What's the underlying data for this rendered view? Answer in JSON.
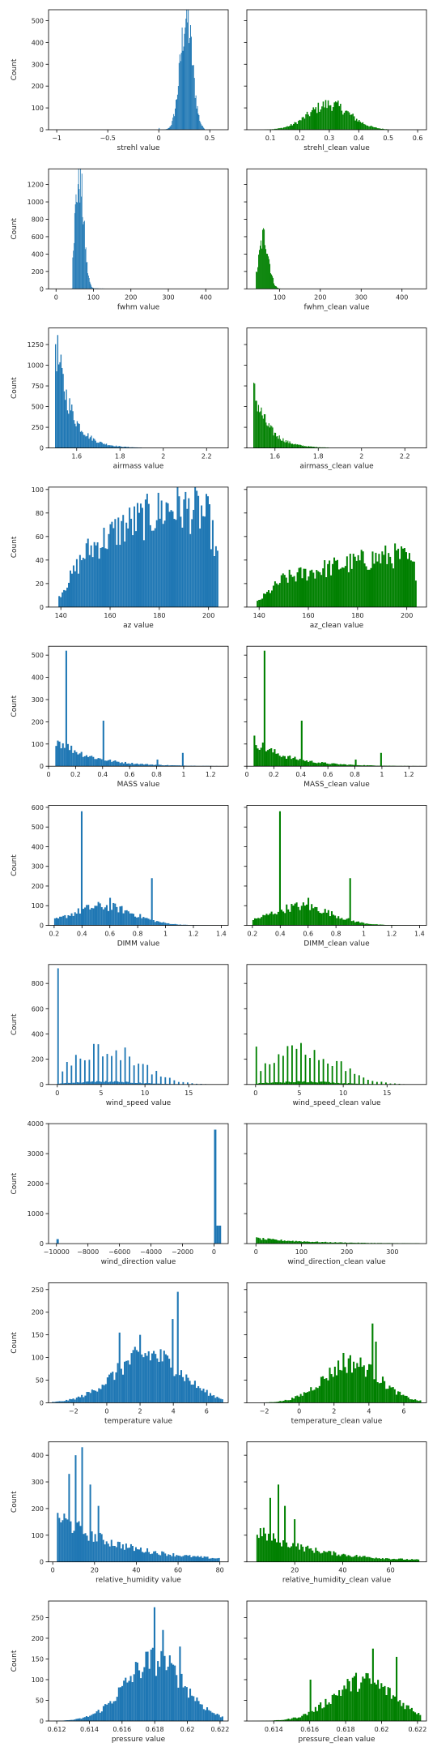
{
  "figure": {
    "bar_color_raw": "#1f77b4",
    "bar_color_clean": "#008000"
  },
  "chart_data": [
    {
      "type": "bar",
      "xlabel": "strehl value",
      "ylabel": "Count",
      "color": "#1f77b4",
      "xlim": [
        -1.08,
        0.68
      ],
      "ylim": [
        0,
        550
      ],
      "xticks": [
        -1.0,
        -0.5,
        0.0,
        0.5
      ],
      "yticks": [
        0,
        100,
        200,
        300,
        400,
        500
      ],
      "hist": {
        "center": 0.27,
        "spread": 0.06,
        "peak": 525,
        "min": 0.0,
        "max": 0.45,
        "bins": 60,
        "spikes": [
          [
            -1.0,
            8
          ]
        ]
      }
    },
    {
      "type": "bar",
      "xlabel": "strehl_clean value",
      "ylabel": "",
      "color": "#008000",
      "xlim": [
        0.02,
        0.63
      ],
      "ylim": [
        0,
        550
      ],
      "xticks": [
        0.1,
        0.2,
        0.3,
        0.4,
        0.5,
        0.6
      ],
      "yticks": [
        0,
        100,
        200,
        300,
        400,
        500
      ],
      "hist": {
        "center": 0.3,
        "spread": 0.07,
        "peak": 120,
        "min": 0.08,
        "max": 0.5,
        "bins": 100,
        "spikes": []
      }
    },
    {
      "type": "bar",
      "xlabel": "fwhm value",
      "ylabel": "Count",
      "color": "#1f77b4",
      "xlim": [
        -20,
        460
      ],
      "ylim": [
        0,
        1380
      ],
      "xticks": [
        0,
        100,
        200,
        300,
        400
      ],
      "yticks": [
        0,
        200,
        400,
        600,
        800,
        1000,
        1200
      ],
      "hist": {
        "center": 62,
        "spread": 12,
        "peak": 1310,
        "min": 42,
        "max": 200,
        "bins": 90,
        "tail": 30,
        "spikes": [
          [
            0,
            6
          ]
        ]
      }
    },
    {
      "type": "bar",
      "xlabel": "fwhm_clean value",
      "ylabel": "",
      "color": "#008000",
      "xlim": [
        20,
        460
      ],
      "ylim": [
        0,
        1380
      ],
      "xticks": [
        100,
        200,
        300,
        400
      ],
      "yticks": [
        0,
        200,
        400,
        600,
        800,
        1000,
        1200
      ],
      "hist": {
        "center": 62,
        "spread": 12,
        "peak": 620,
        "min": 42,
        "max": 220,
        "bins": 90,
        "tail": 30,
        "spikes": []
      }
    },
    {
      "type": "bar",
      "xlabel": "airmass value",
      "ylabel": "Count",
      "color": "#1f77b4",
      "xlim": [
        1.47,
        2.3
      ],
      "ylim": [
        0,
        1450
      ],
      "xticks": [
        1.6,
        1.8,
        2.0,
        2.2
      ],
      "yticks": [
        0,
        250,
        500,
        750,
        1000,
        1250
      ],
      "hist": {
        "decay_from": 1.5,
        "decay_scale": 0.07,
        "peak": 1380,
        "min": 1.5,
        "max": 1.9,
        "bins": 80,
        "spikes": []
      }
    },
    {
      "type": "bar",
      "xlabel": "airmass_clean value",
      "ylabel": "",
      "color": "#008000",
      "xlim": [
        1.47,
        2.3
      ],
      "ylim": [
        0,
        1450
      ],
      "xticks": [
        1.6,
        1.8,
        2.0,
        2.2
      ],
      "yticks": [
        0,
        250,
        500,
        750,
        1000,
        1250
      ],
      "hist": {
        "decay_from": 1.5,
        "decay_scale": 0.07,
        "peak": 740,
        "min": 1.5,
        "max": 1.85,
        "bins": 80,
        "spikes": []
      }
    },
    {
      "type": "bar",
      "xlabel": "az value",
      "ylabel": "Count",
      "color": "#1f77b4",
      "xlim": [
        135,
        208
      ],
      "ylim": [
        0,
        102
      ],
      "xticks": [
        140,
        160,
        180,
        200
      ],
      "yticks": [
        0,
        20,
        40,
        60,
        80,
        100
      ],
      "hist": {
        "ramp": [
          [
            139,
            8
          ],
          [
            150,
            48
          ],
          [
            165,
            70
          ],
          [
            185,
            88
          ],
          [
            195,
            85
          ],
          [
            200,
            78
          ],
          [
            204,
            40
          ]
        ],
        "min": 139,
        "max": 204,
        "bins": 100,
        "spikes": []
      }
    },
    {
      "type": "bar",
      "xlabel": "az_clean value",
      "ylabel": "",
      "color": "#008000",
      "xlim": [
        135,
        208
      ],
      "ylim": [
        0,
        102
      ],
      "xticks": [
        140,
        160,
        180,
        200
      ],
      "yticks": [
        0,
        20,
        40,
        60,
        80,
        100
      ],
      "hist": {
        "ramp": [
          [
            139,
            4
          ],
          [
            150,
            25
          ],
          [
            165,
            33
          ],
          [
            185,
            42
          ],
          [
            195,
            45
          ],
          [
            200,
            43
          ],
          [
            204,
            30
          ]
        ],
        "min": 139,
        "max": 204,
        "bins": 100,
        "spikes": []
      }
    },
    {
      "type": "bar",
      "xlabel": "MASS value",
      "ylabel": "Count",
      "color": "#1f77b4",
      "xlim": [
        0,
        1.33
      ],
      "ylim": [
        0,
        540
      ],
      "xticks": [
        0.0,
        0.2,
        0.4,
        0.6,
        0.8,
        1.0,
        1.2
      ],
      "yticks": [
        0,
        100,
        200,
        300,
        400,
        500
      ],
      "hist": {
        "decay_from": 0.05,
        "decay_scale": 0.25,
        "peak": 130,
        "min": 0.05,
        "max": 1.3,
        "bins": 100,
        "spikes": [
          [
            0.13,
            520
          ],
          [
            0.4,
            205
          ],
          [
            1.0,
            60
          ],
          [
            0.8,
            30
          ]
        ]
      }
    },
    {
      "type": "bar",
      "xlabel": "MASS_clean value",
      "ylabel": "",
      "color": "#008000",
      "xlim": [
        0,
        1.33
      ],
      "ylim": [
        0,
        540
      ],
      "xticks": [
        0.0,
        0.2,
        0.4,
        0.6,
        0.8,
        1.0,
        1.2
      ],
      "yticks": [
        0,
        100,
        200,
        300,
        400,
        500
      ],
      "hist": {
        "decay_from": 0.05,
        "decay_scale": 0.25,
        "peak": 120,
        "min": 0.05,
        "max": 1.3,
        "bins": 100,
        "spikes": [
          [
            0.13,
            520
          ],
          [
            0.4,
            205
          ],
          [
            1.0,
            60
          ],
          [
            0.8,
            30
          ]
        ]
      }
    },
    {
      "type": "bar",
      "xlabel": "DIMM value",
      "ylabel": "Count",
      "color": "#1f77b4",
      "xlim": [
        0.16,
        1.45
      ],
      "ylim": [
        0,
        610
      ],
      "xticks": [
        0.2,
        0.4,
        0.6,
        0.8,
        1.0,
        1.2,
        1.4
      ],
      "yticks": [
        0,
        100,
        200,
        300,
        400,
        500,
        600
      ],
      "hist": {
        "center": 0.55,
        "spread": 0.22,
        "peak": 100,
        "min": 0.2,
        "max": 1.4,
        "bins": 100,
        "spikes": [
          [
            0.4,
            580
          ],
          [
            0.9,
            240
          ],
          [
            0.6,
            140
          ]
        ]
      }
    },
    {
      "type": "bar",
      "xlabel": "DIMM_clean value",
      "ylabel": "",
      "color": "#008000",
      "xlim": [
        0.16,
        1.45
      ],
      "ylim": [
        0,
        610
      ],
      "xticks": [
        0.2,
        0.4,
        0.6,
        0.8,
        1.0,
        1.2,
        1.4
      ],
      "yticks": [
        0,
        100,
        200,
        300,
        400,
        500,
        600
      ],
      "hist": {
        "center": 0.55,
        "spread": 0.22,
        "peak": 100,
        "min": 0.2,
        "max": 1.4,
        "bins": 100,
        "spikes": [
          [
            0.4,
            580
          ],
          [
            0.9,
            240
          ],
          [
            0.6,
            140
          ]
        ]
      }
    },
    {
      "type": "bar",
      "xlabel": "wind_speed value",
      "ylabel": "Count",
      "color": "#1f77b4",
      "xlim": [
        -1,
        19.5
      ],
      "ylim": [
        0,
        950
      ],
      "xticks": [
        0,
        5,
        10,
        15
      ],
      "yticks": [
        0,
        200,
        400,
        600,
        800
      ],
      "hist": {
        "center": 5.5,
        "spread": 3.8,
        "peak": 290,
        "min": 0,
        "max": 17,
        "bins": 100,
        "discrete": 0.5,
        "spikes": [
          [
            0,
            920
          ]
        ]
      }
    },
    {
      "type": "bar",
      "xlabel": "wind_speed_clean value",
      "ylabel": "",
      "color": "#008000",
      "xlim": [
        -1,
        19.5
      ],
      "ylim": [
        0,
        950
      ],
      "xticks": [
        0,
        5,
        10,
        15
      ],
      "yticks": [
        0,
        200,
        400,
        600,
        800
      ],
      "hist": {
        "center": 5.5,
        "spread": 3.8,
        "peak": 290,
        "min": 0,
        "max": 17,
        "bins": 100,
        "discrete": 0.5,
        "spikes": [
          [
            0,
            300
          ]
        ]
      }
    },
    {
      "type": "bar",
      "xlabel": "wind_direction value",
      "ylabel": "Count",
      "color": "#1f77b4",
      "xlim": [
        -10500,
        900
      ],
      "ylim": [
        0,
        4000
      ],
      "xticks": [
        -10000,
        -8000,
        -6000,
        -4000,
        -2000,
        0
      ],
      "yticks": [
        0,
        1000,
        2000,
        3000,
        4000
      ],
      "hist": {
        "bars": [
          [
            -10000,
            150
          ],
          [
            0,
            3800
          ],
          [
            150,
            600
          ],
          [
            300,
            600
          ]
        ],
        "width": 150,
        "min": -10000,
        "max": 400,
        "bins": 0,
        "spikes": []
      }
    },
    {
      "type": "bar",
      "xlabel": "wind_direction_clean value",
      "ylabel": "",
      "color": "#008000",
      "xlim": [
        -20,
        375
      ],
      "ylim": [
        0,
        4000
      ],
      "xticks": [
        0,
        100,
        200,
        300
      ],
      "yticks": [
        0,
        1000,
        2000,
        3000,
        4000
      ],
      "hist": {
        "decay_from": 0,
        "decay_scale": 120,
        "peak": 180,
        "min": 0,
        "max": 360,
        "bins": 100,
        "spikes": []
      }
    },
    {
      "type": "bar",
      "xlabel": "temperature value",
      "ylabel": "Count",
      "color": "#1f77b4",
      "xlim": [
        -3.5,
        7.3
      ],
      "ylim": [
        0,
        265
      ],
      "xticks": [
        -2,
        0,
        2,
        4,
        6
      ],
      "yticks": [
        0,
        50,
        100,
        150,
        200,
        250
      ],
      "hist": {
        "center": 2.5,
        "spread": 2.0,
        "peak": 110,
        "min": -3.3,
        "max": 7.0,
        "bins": 100,
        "spikes": [
          [
            4.3,
            245
          ],
          [
            4.0,
            185
          ],
          [
            0.8,
            155
          ],
          [
            2.0,
            150
          ]
        ]
      }
    },
    {
      "type": "bar",
      "xlabel": "temperature_clean value",
      "ylabel": "",
      "color": "#008000",
      "xlim": [
        -3,
        7.3
      ],
      "ylim": [
        0,
        265
      ],
      "xticks": [
        -2,
        0,
        2,
        4,
        6
      ],
      "yticks": [
        0,
        50,
        100,
        150,
        200,
        250
      ],
      "hist": {
        "center": 3.0,
        "spread": 1.6,
        "peak": 90,
        "min": -2.8,
        "max": 7.0,
        "bins": 100,
        "spikes": [
          [
            4.2,
            175
          ],
          [
            4.4,
            135
          ],
          [
            2.5,
            110
          ]
        ]
      }
    },
    {
      "type": "bar",
      "xlabel": "relative_humidity value",
      "ylabel": "Count",
      "color": "#1f77b4",
      "xlim": [
        -2,
        84
      ],
      "ylim": [
        0,
        450
      ],
      "xticks": [
        0,
        20,
        40,
        60,
        80
      ],
      "yticks": [
        0,
        100,
        200,
        300,
        400
      ],
      "hist": {
        "decay_from": 2,
        "decay_scale": 30,
        "peak": 180,
        "min": 2,
        "max": 80,
        "bins": 100,
        "spikes": [
          [
            14,
            430
          ],
          [
            11,
            400
          ],
          [
            8,
            330
          ],
          [
            18,
            290
          ],
          [
            22,
            210
          ]
        ]
      }
    },
    {
      "type": "bar",
      "xlabel": "relative_humidity_clean value",
      "ylabel": "",
      "color": "#008000",
      "xlim": [
        0,
        75
      ],
      "ylim": [
        0,
        450
      ],
      "xticks": [
        20,
        40,
        60
      ],
      "yticks": [
        0,
        100,
        200,
        300,
        400
      ],
      "hist": {
        "decay_from": 4,
        "decay_scale": 25,
        "peak": 120,
        "min": 4,
        "max": 72,
        "bins": 100,
        "spikes": [
          [
            13,
            290
          ],
          [
            10,
            240
          ],
          [
            16,
            210
          ],
          [
            20,
            160
          ]
        ]
      }
    },
    {
      "type": "bar",
      "xlabel": "pressure value",
      "ylabel": "Count",
      "color": "#1f77b4",
      "xlim": [
        0.6115,
        0.6225
      ],
      "ylim": [
        0,
        290
      ],
      "xticks": [
        0.612,
        0.614,
        0.616,
        0.618,
        0.62,
        0.622
      ],
      "yticks": [
        0,
        50,
        100,
        150,
        200,
        250
      ],
      "hist": {
        "center": 0.618,
        "spread": 0.0018,
        "peak": 150,
        "min": 0.6118,
        "max": 0.6222,
        "bins": 100,
        "spikes": [
          [
            0.618,
            275
          ],
          [
            0.6185,
            220
          ],
          [
            0.6195,
            180
          ]
        ]
      }
    },
    {
      "type": "bar",
      "xlabel": "pressure_clean value",
      "ylabel": "",
      "color": "#008000",
      "xlim": [
        0.6125,
        0.6225
      ],
      "ylim": [
        0,
        290
      ],
      "xticks": [
        0.614,
        0.616,
        0.618,
        0.62,
        0.622
      ],
      "yticks": [
        0,
        50,
        100,
        150,
        200,
        250
      ],
      "hist": {
        "center": 0.619,
        "spread": 0.0017,
        "peak": 100,
        "min": 0.6128,
        "max": 0.6222,
        "bins": 100,
        "spikes": [
          [
            0.6195,
            175
          ],
          [
            0.6208,
            155
          ],
          [
            0.616,
            100
          ]
        ]
      }
    }
  ]
}
